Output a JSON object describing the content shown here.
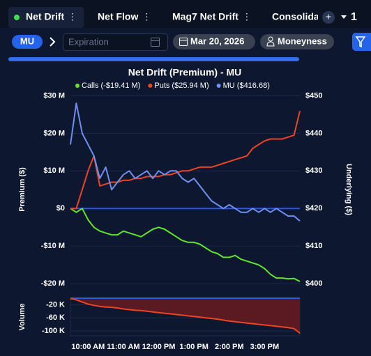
{
  "tabs": [
    {
      "label": "Net Drift",
      "active": true
    },
    {
      "label": "Net Flow"
    },
    {
      "label": "Mag7 Net Drift"
    },
    {
      "label": "Consolida"
    }
  ],
  "tab_menu_label": "1",
  "toolbar": {
    "ticker": "MU",
    "expiration_placeholder": "Expiration",
    "date": "Mar 20, 2026",
    "moneyness": "Moneyness"
  },
  "chart_data": {
    "type": "line",
    "title": "Net Drift (Premium) - MU",
    "y_label": "Premium ($)",
    "y2_label": "Underlying ($)",
    "categories": [
      null,
      null,
      null,
      "10:00 AM",
      null,
      null,
      null,
      null,
      null,
      "11:00 AM",
      null,
      null,
      null,
      null,
      null,
      "12:00 PM",
      null,
      null,
      null,
      null,
      null,
      "1:00 PM",
      null,
      null,
      null,
      null,
      null,
      "2:00 PM",
      null,
      null,
      null,
      null,
      null,
      "3:00 PM",
      null,
      null,
      null,
      null,
      null,
      null
    ],
    "series": [
      {
        "name": "Calls (-$19.41 M)",
        "color": "#5ee62e",
        "values": [
          0,
          -1,
          0,
          -3,
          -5,
          -6,
          -6.5,
          -7,
          -7,
          -6,
          -6.5,
          -7,
          -7.5,
          -6.5,
          -5.5,
          -5,
          -5.5,
          -6.5,
          -7.5,
          -8.5,
          -9,
          -9,
          -9.5,
          -10.5,
          -11.5,
          -12,
          -13,
          -13,
          -12.5,
          -13.5,
          -14,
          -14.5,
          -15,
          -16,
          -17.5,
          -18.5,
          -18.5,
          -18.7,
          -18.6,
          -19.41
        ]
      },
      {
        "name": "Puts ($25.94 M)",
        "color": "#ee4422",
        "values": [
          0,
          0,
          5,
          10,
          14,
          6,
          6.5,
          7,
          7,
          7.5,
          7.5,
          8,
          8,
          8.5,
          8.5,
          8.5,
          9,
          9,
          9.5,
          10,
          10,
          10.5,
          11,
          11,
          11,
          11.5,
          12,
          12.5,
          13,
          13.5,
          14,
          16,
          17,
          18,
          18.5,
          18.5,
          18.5,
          19,
          19.5,
          25.94
        ]
      },
      {
        "name": "MU ($416.68)",
        "color": "#6f8ff0",
        "axis": "y2",
        "values": [
          437,
          448,
          440,
          437,
          434,
          428,
          431,
          425,
          427,
          429,
          430,
          428,
          429,
          430,
          428,
          430,
          429,
          430,
          430,
          428,
          427,
          428,
          426,
          424,
          422,
          421,
          420,
          421,
          420,
          419,
          419,
          420,
          419,
          420,
          419,
          420,
          419,
          418,
          418,
          416.68
        ]
      }
    ],
    "ylim": [
      -22,
      31
    ],
    "yticks": [
      {
        "value": 30,
        "label": "$30 M"
      },
      {
        "value": 20,
        "label": "$20 M"
      },
      {
        "value": 10,
        "label": "$10 M"
      },
      {
        "value": 0,
        "label": "$0"
      },
      {
        "value": -10,
        "label": "-$10 M"
      },
      {
        "value": -20,
        "label": "-$20 M"
      }
    ],
    "y2lim": [
      398,
      451
    ],
    "y2ticks": [
      {
        "value": 450,
        "label": "$450"
      },
      {
        "value": 440,
        "label": "$440"
      },
      {
        "value": 430,
        "label": "$430"
      },
      {
        "value": 420,
        "label": "$420"
      },
      {
        "value": 410,
        "label": "$410"
      },
      {
        "value": 400,
        "label": "$400"
      }
    ],
    "grid": true,
    "volume": {
      "label": "Volume",
      "color": "#ee4422",
      "values": [
        -1,
        -5,
        -12,
        -18,
        -22,
        -25,
        -27,
        -28,
        -30,
        -33,
        -35,
        -37,
        -38,
        -40,
        -42,
        -44,
        -46,
        -48,
        -50,
        -52,
        -54,
        -56,
        -58,
        -60,
        -62,
        -64,
        -67,
        -70,
        -72,
        -74,
        -76,
        -78,
        -80,
        -82,
        -84,
        -86,
        -88,
        -90,
        -93,
        -107
      ],
      "ylim": [
        -115,
        0
      ],
      "yticks": [
        {
          "value": -20,
          "label": "-20 K"
        },
        {
          "value": -60,
          "label": "-60 K"
        },
        {
          "value": -100,
          "label": "-100 K"
        }
      ]
    }
  }
}
